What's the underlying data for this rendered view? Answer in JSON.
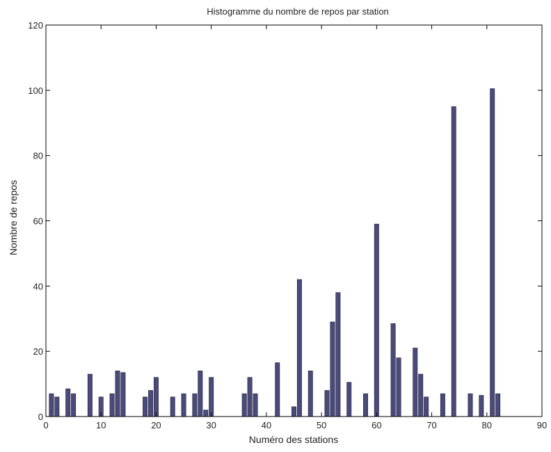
{
  "chart_data": {
    "type": "bar",
    "title": "Histogramme du nombre de repos par station",
    "xlabel": "Numéro des stations",
    "ylabel": "Nombre de repos",
    "xlim": [
      0,
      90
    ],
    "ylim": [
      0,
      120
    ],
    "xticks": [
      0,
      10,
      20,
      30,
      40,
      50,
      60,
      70,
      80,
      90
    ],
    "yticks": [
      0,
      20,
      40,
      60,
      80,
      100,
      120
    ],
    "grid": false,
    "colors": {
      "bar_fill": "#4b4b7a",
      "bar_stroke": "#1c1c3c",
      "axis": "#000000",
      "background": "#ffffff"
    },
    "x": [
      1,
      2,
      4,
      5,
      8,
      10,
      12,
      13,
      14,
      18,
      19,
      20,
      23,
      25,
      27,
      28,
      29,
      30,
      36,
      37,
      38,
      42,
      45,
      46,
      48,
      51,
      52,
      53,
      55,
      58,
      60,
      63,
      64,
      67,
      68,
      69,
      72,
      74,
      77,
      79,
      81,
      82
    ],
    "values": [
      7,
      6,
      8.5,
      7,
      13,
      6,
      7,
      14,
      13.5,
      6,
      8,
      12,
      6,
      7,
      7,
      14,
      2,
      12,
      7,
      12,
      7,
      16.5,
      3,
      42,
      14,
      8,
      29,
      38,
      10.5,
      7,
      59,
      28.5,
      18,
      21,
      13,
      6,
      7,
      95,
      7,
      6.5,
      100.5,
      7
    ]
  }
}
